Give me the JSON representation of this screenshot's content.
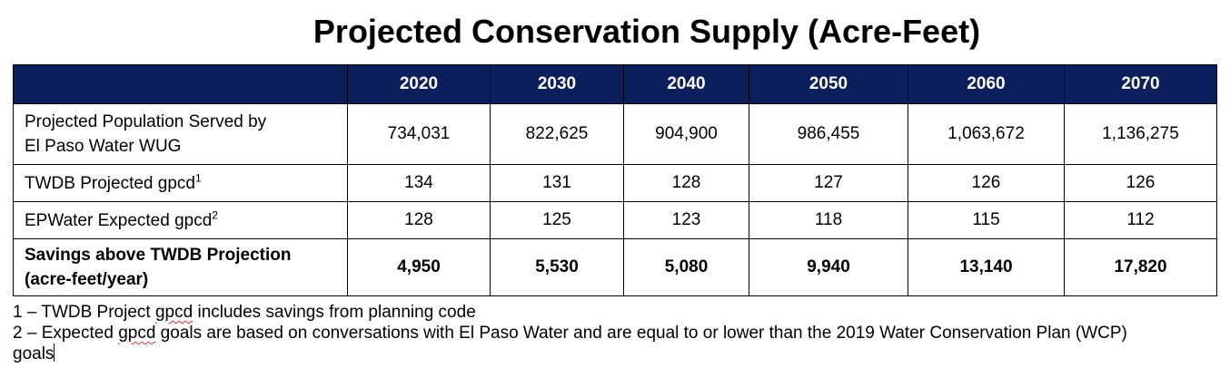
{
  "title": "Projected Conservation Supply (Acre-Feet)",
  "table": {
    "header_blank": "",
    "years": [
      "2020",
      "2030",
      "2040",
      "2050",
      "2060",
      "2070"
    ],
    "rows": [
      {
        "label_line1": "Projected Population Served by",
        "label_line2": "El Paso Water WUG",
        "values": [
          "734,031",
          "822,625",
          "904,900",
          "986,455",
          "1,063,672",
          "1,136,275"
        ]
      },
      {
        "label": "TWDB Projected gpcd",
        "superscript": "1",
        "values": [
          "134",
          "131",
          "128",
          "127",
          "126",
          "126"
        ]
      },
      {
        "label": "EPWater Expected gpcd",
        "superscript": "2",
        "values": [
          "128",
          "125",
          "123",
          "118",
          "115",
          "112"
        ]
      },
      {
        "label_line1": "Savings above TWDB Projection",
        "label_line2": "(acre-feet/year)",
        "values": [
          "4,950",
          "5,530",
          "5,080",
          "9,940",
          "13,140",
          "17,820"
        ]
      }
    ]
  },
  "footnotes": {
    "note1_prefix": "1 – TWDB Project ",
    "note1_flagged_word": "gpcd",
    "note1_suffix": " includes savings from planning code",
    "note2_prefix": "2 – Expected ",
    "note2_flagged_word": "gpcd",
    "note2_suffix": " goals are based on conversations with El Paso Water and are equal to or lower than the 2019 Water Conservation Plan (WCP)",
    "note2_end": "goals"
  },
  "colors": {
    "header_background": "#0b1f5c",
    "header_text": "#ffffff",
    "spellcheck_underline": "#d0312d"
  }
}
